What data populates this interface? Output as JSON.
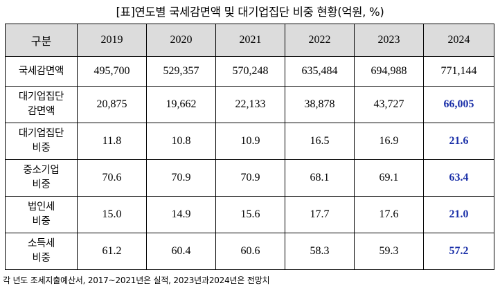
{
  "title": "[표]연도별 국세감면액 및 대기업집단 비중 현황(억원, %)",
  "table": {
    "header": {
      "category": "구분",
      "years": [
        "2019",
        "2020",
        "2021",
        "2022",
        "2023",
        "2024"
      ]
    },
    "rows": [
      {
        "label_lines": [
          "국세감면액"
        ],
        "values": [
          "495,700",
          "529,357",
          "570,248",
          "635,484",
          "694,988",
          "771,144"
        ],
        "emphasized_last": false
      },
      {
        "label_lines": [
          "대기업집단",
          "감면액"
        ],
        "values": [
          "20,875",
          "19,662",
          "22,133",
          "38,878",
          "43,727",
          "66,005"
        ],
        "emphasized_last": true
      },
      {
        "label_lines": [
          "대기업집단",
          "비중"
        ],
        "values": [
          "11.8",
          "10.8",
          "10.9",
          "16.5",
          "16.9",
          "21.6"
        ],
        "emphasized_last": true
      },
      {
        "label_lines": [
          "중소기업",
          "비중"
        ],
        "values": [
          "70.6",
          "70.9",
          "70.9",
          "68.1",
          "69.1",
          "63.4"
        ],
        "emphasized_last": true
      },
      {
        "label_lines": [
          "법인세",
          "비중"
        ],
        "values": [
          "15.0",
          "14.9",
          "15.6",
          "17.7",
          "17.6",
          "21.0"
        ],
        "emphasized_last": true
      },
      {
        "label_lines": [
          "소득세",
          "비중"
        ],
        "values": [
          "61.2",
          "60.4",
          "60.6",
          "58.3",
          "59.3",
          "57.2"
        ],
        "emphasized_last": true
      }
    ]
  },
  "footnote": "각 년도 조세지출예산서, 2017~2021년은 실적, 2023년과2024년은 전망치",
  "colors": {
    "header_background": "#dcdcdc",
    "emphasis_text": "#1a2fa8",
    "border": "#000000"
  }
}
